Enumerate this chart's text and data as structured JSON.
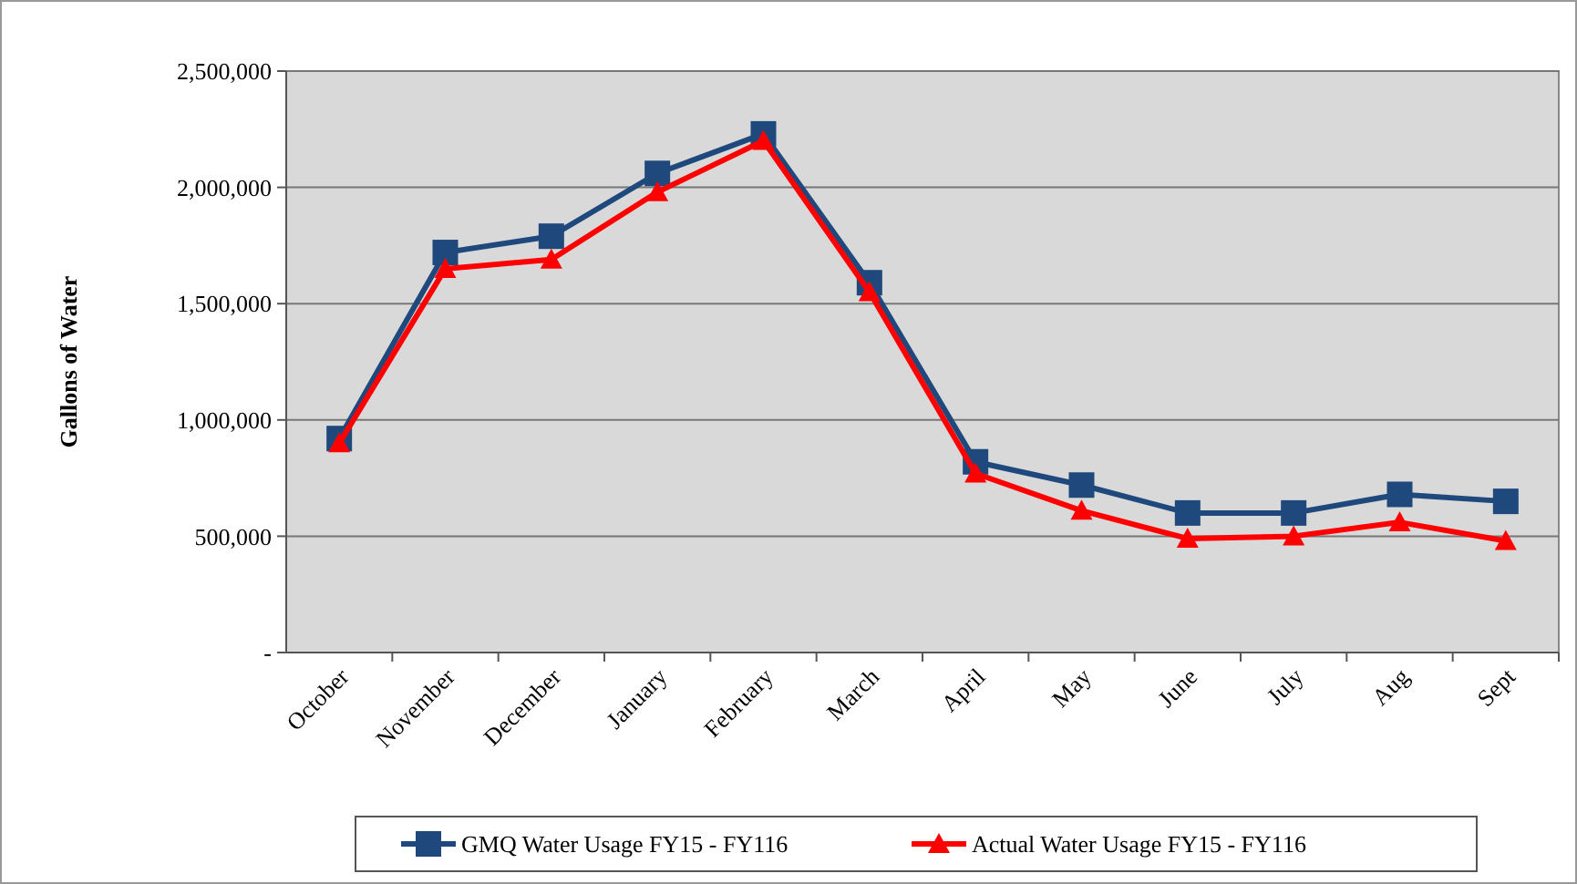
{
  "chart_data": {
    "type": "line",
    "ylabel": "Gallons of Water",
    "categories": [
      "October",
      "November",
      "December",
      "January",
      "February",
      "March",
      "April",
      "May",
      "June",
      "July",
      "Aug",
      "Sept"
    ],
    "series": [
      {
        "name": "GMQ Water Usage FY15 - FY116",
        "color": "#1f497d",
        "marker": "square",
        "values": [
          920000,
          1720000,
          1790000,
          2060000,
          2230000,
          1590000,
          820000,
          720000,
          600000,
          600000,
          680000,
          650000
        ]
      },
      {
        "name": "Actual Water Usage FY15 - FY116",
        "color": "#ff0000",
        "marker": "triangle",
        "values": [
          900000,
          1650000,
          1690000,
          1980000,
          2200000,
          1550000,
          770000,
          610000,
          490000,
          500000,
          560000,
          480000
        ]
      }
    ],
    "ylim": [
      0,
      2500000
    ],
    "yticks": [
      {
        "value": 0,
        "label": "-"
      },
      {
        "value": 500000,
        "label": "500,000"
      },
      {
        "value": 1000000,
        "label": "1,000,000"
      },
      {
        "value": 1500000,
        "label": "1,500,000"
      },
      {
        "value": 2000000,
        "label": "2,000,000"
      },
      {
        "value": 2500000,
        "label": "2,500,000"
      }
    ],
    "grid": "y",
    "legend": "bottom"
  }
}
